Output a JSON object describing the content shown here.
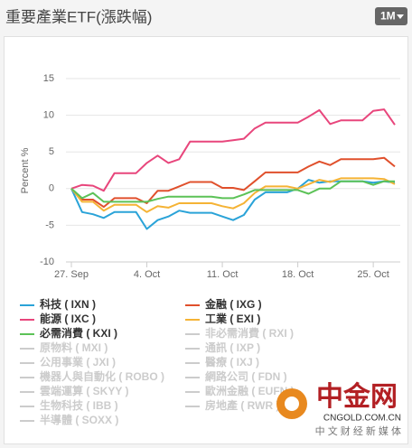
{
  "header": {
    "title": "重要產業ETF(漲跌幅)",
    "range_button": "1M"
  },
  "watermark": {
    "brand": "中金网",
    "site": "CNGOLD.COM.CN",
    "slogan": "中 文 财 经 新 媒 体"
  },
  "chart_data": {
    "type": "line",
    "y_label": "Percent %",
    "categories": [
      "27. Sep",
      null,
      null,
      null,
      null,
      null,
      null,
      "4. Oct",
      null,
      null,
      null,
      null,
      null,
      null,
      "11. Oct",
      null,
      null,
      null,
      null,
      null,
      null,
      "18. Oct",
      null,
      null,
      null,
      null,
      null,
      null,
      "25. Oct",
      null,
      null
    ],
    "ylim": [
      -10,
      15
    ],
    "yticks": [
      -10,
      -5,
      0,
      5,
      10,
      15
    ],
    "grid": true,
    "series": [
      {
        "name": "科技 ( IXN )",
        "color": "#2aa3d8",
        "values": [
          0,
          -3.2,
          -3.5,
          -4.0,
          -3.2,
          -3.2,
          -3.2,
          -5.5,
          -4.3,
          -3.8,
          -3.0,
          -3.3,
          -3.3,
          -3.3,
          -3.8,
          -4.3,
          -3.6,
          -1.5,
          -0.5,
          -0.5,
          -0.5,
          0.0,
          1.2,
          0.8,
          1.0,
          1.0,
          1.0,
          1.0,
          0.8,
          1.0,
          0.8
        ]
      },
      {
        "name": "金融 ( IXG )",
        "color": "#e0502c",
        "values": [
          0,
          -1.5,
          -1.5,
          -2.5,
          -1.3,
          -1.3,
          -1.3,
          -2.0,
          -0.3,
          -0.3,
          0.3,
          0.9,
          0.9,
          0.9,
          0.1,
          0.1,
          -0.2,
          1.0,
          2.2,
          2.2,
          2.2,
          2.2,
          3.0,
          3.7,
          3.2,
          4.0,
          4.0,
          4.0,
          4.0,
          4.2,
          3.0
        ]
      },
      {
        "name": "能源 ( IXC )",
        "color": "#e8467c",
        "values": [
          0,
          0.5,
          0.4,
          -0.3,
          2.1,
          2.1,
          2.1,
          3.5,
          4.5,
          3.5,
          4.0,
          6.4,
          6.4,
          6.4,
          6.4,
          6.6,
          6.8,
          8.2,
          9.0,
          9.0,
          9.0,
          9.0,
          9.8,
          10.7,
          8.8,
          9.3,
          9.3,
          9.3,
          10.6,
          10.8,
          8.7
        ]
      },
      {
        "name": "工業 ( EXI )",
        "color": "#f5b335",
        "values": [
          0,
          -1.8,
          -1.8,
          -3.0,
          -2.2,
          -2.2,
          -2.2,
          -3.2,
          -2.4,
          -2.6,
          -2.0,
          -2.0,
          -2.0,
          -2.0,
          -2.4,
          -2.7,
          -2.0,
          -0.6,
          0.3,
          0.3,
          0.3,
          0.0,
          0.6,
          1.2,
          0.9,
          1.4,
          1.4,
          1.4,
          1.4,
          1.3,
          0.6
        ]
      },
      {
        "name": "必需消費 ( KXI )",
        "color": "#5cc257",
        "values": [
          0,
          -1.3,
          -0.6,
          -1.8,
          -1.8,
          -1.8,
          -1.8,
          -1.8,
          -1.4,
          -1.1,
          -1.1,
          -1.1,
          -1.1,
          -1.1,
          -1.3,
          -1.3,
          -0.8,
          -0.2,
          -0.2,
          -0.2,
          -0.2,
          -0.2,
          -0.7,
          0.0,
          0.0,
          1.0,
          1.0,
          1.0,
          0.5,
          1.0,
          1.0
        ]
      },
      {
        "name": "非必需消費 ( RXI )",
        "color": "#cccccc",
        "visible": false
      },
      {
        "name": "原物料 ( MXI )",
        "color": "#cccccc",
        "visible": false
      },
      {
        "name": "通訊 ( IXP )",
        "color": "#cccccc",
        "visible": false
      },
      {
        "name": "公用事業 ( JXI )",
        "color": "#cccccc",
        "visible": false
      },
      {
        "name": "醫療 ( IXJ )",
        "color": "#cccccc",
        "visible": false
      },
      {
        "name": "機器人與自動化 ( ROBO )",
        "color": "#cccccc",
        "visible": false
      },
      {
        "name": "網路公司 ( FDN )",
        "color": "#cccccc",
        "visible": false
      },
      {
        "name": "雲端運算 ( SKYY )",
        "color": "#cccccc",
        "visible": false
      },
      {
        "name": "歐洲金融 ( EUFN )",
        "color": "#cccccc",
        "visible": false
      },
      {
        "name": "生物科技 ( IBB )",
        "color": "#cccccc",
        "visible": false
      },
      {
        "name": "房地產 ( RWR )",
        "color": "#cccccc",
        "visible": false
      },
      {
        "name": "半導體 ( SOXX )",
        "color": "#cccccc",
        "visible": false
      }
    ]
  }
}
